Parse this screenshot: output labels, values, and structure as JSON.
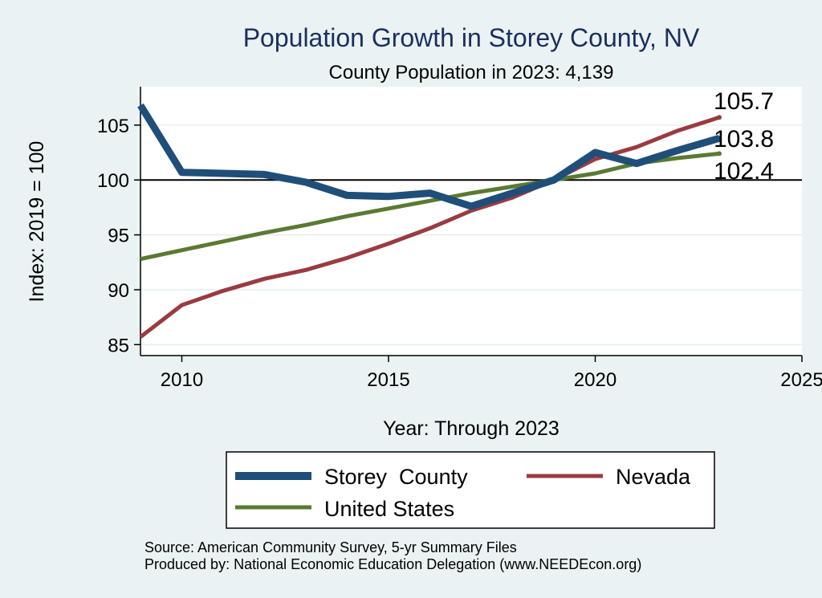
{
  "chart_data": {
    "type": "line",
    "title": "Population Growth in Storey County, NV",
    "subtitle": "County Population in 2023: 4,139",
    "xlabel": "Year: Through 2023",
    "ylabel": "Index: 2019 = 100",
    "xlim": [
      2009,
      2025
    ],
    "ylim": [
      84,
      108.5
    ],
    "xticks": [
      2010,
      2015,
      2020,
      2025
    ],
    "yticks": [
      85,
      90,
      95,
      100,
      105
    ],
    "reference_line": 100,
    "grid": true,
    "legend_position": "bottom",
    "x": [
      2009,
      2010,
      2011,
      2012,
      2013,
      2014,
      2015,
      2016,
      2017,
      2018,
      2019,
      2020,
      2021,
      2022,
      2023
    ],
    "series": [
      {
        "name": "Storey  County",
        "color": "#1f4e79",
        "values": [
          106.8,
          100.7,
          100.6,
          100.5,
          99.8,
          98.6,
          98.5,
          98.8,
          97.6,
          98.8,
          100.0,
          102.5,
          101.5,
          102.7,
          103.8
        ]
      },
      {
        "name": "Nevada",
        "color": "#9a3b40",
        "values": [
          85.7,
          88.6,
          89.9,
          91.0,
          91.8,
          92.9,
          94.2,
          95.6,
          97.2,
          98.4,
          100.0,
          101.9,
          103.0,
          104.5,
          105.7
        ]
      },
      {
        "name": "United States",
        "color": "#5a7a32",
        "values": [
          92.8,
          93.6,
          94.4,
          95.2,
          95.9,
          96.7,
          97.4,
          98.1,
          98.8,
          99.4,
          100.0,
          100.6,
          101.5,
          102.0,
          102.4
        ]
      }
    ],
    "end_labels": [
      {
        "series": "Nevada",
        "text": "105.7"
      },
      {
        "series": "Storey  County",
        "text": "103.8"
      },
      {
        "series": "United States",
        "text": "102.4"
      }
    ]
  },
  "footer": {
    "source": "Source: American Community Survey, 5-yr Summary Files",
    "produced_by": "Produced by: National Economic Education Delegation (www.NEEDEcon.org)"
  }
}
